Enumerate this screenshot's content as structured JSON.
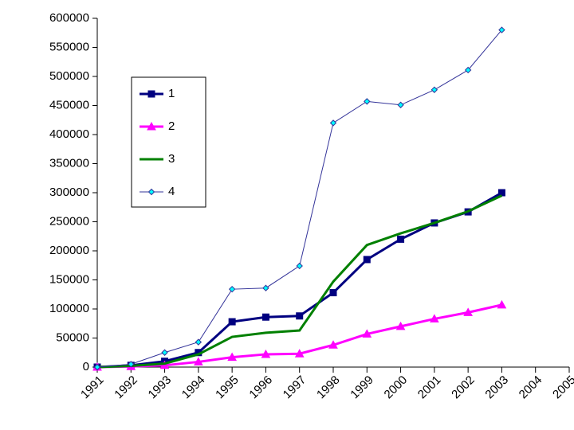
{
  "chart_data": {
    "type": "line",
    "categories": [
      "1991",
      "1992",
      "1993",
      "1994",
      "1995",
      "1996",
      "1997",
      "1998",
      "1999",
      "2000",
      "2001",
      "2002",
      "2003",
      "2004",
      "2005"
    ],
    "ylim": [
      0,
      600000
    ],
    "yticks": [
      0,
      50000,
      100000,
      150000,
      200000,
      250000,
      300000,
      350000,
      400000,
      450000,
      500000,
      550000,
      600000
    ],
    "legend": "upper left",
    "series": [
      {
        "name": "1",
        "color": "#000080",
        "marker": "square",
        "marker_color": "#000080",
        "line_width": 3,
        "values": [
          0,
          3000,
          10000,
          25000,
          78000,
          86000,
          88000,
          128000,
          185000,
          220000,
          248000,
          267000,
          300000,
          null,
          null
        ]
      },
      {
        "name": "2",
        "color": "#ff00ff",
        "marker": "triangle",
        "marker_color": "#ff00ff",
        "line_width": 3,
        "values": [
          0,
          1000,
          3000,
          9000,
          17000,
          22000,
          23000,
          38000,
          57000,
          70000,
          83000,
          94000,
          107000,
          null,
          null
        ]
      },
      {
        "name": "3",
        "color": "#008000",
        "marker": "none",
        "marker_color": "#008000",
        "line_width": 3,
        "values": [
          0,
          2000,
          6000,
          22000,
          52000,
          59000,
          63000,
          147000,
          210000,
          230000,
          248000,
          268000,
          295000,
          null,
          null
        ]
      },
      {
        "name": "4",
        "color": "#333399",
        "marker": "diamond",
        "marker_color": "#00ffff",
        "line_width": 1,
        "values": [
          0,
          5000,
          25000,
          43000,
          134000,
          136000,
          174000,
          420000,
          457000,
          451000,
          477000,
          511000,
          580000,
          null,
          null
        ]
      }
    ]
  }
}
